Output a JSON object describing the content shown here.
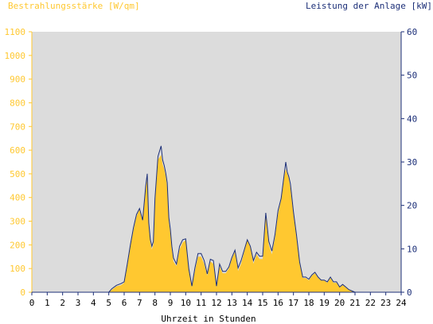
{
  "chart_data": {
    "type": "area",
    "title_left": "Bestrahlungsstärke [W/qm]",
    "title_right": "Leistung der Anlage [kW]",
    "xlabel": "Uhrzeit in Stunden",
    "xlim": [
      0,
      24
    ],
    "x_ticks": [
      "0",
      "1",
      "2",
      "3",
      "4",
      "5",
      "6",
      "7",
      "8",
      "9",
      "10",
      "11",
      "12",
      "13",
      "14",
      "15",
      "16",
      "17",
      "18",
      "19",
      "20",
      "21",
      "22",
      "23",
      "24"
    ],
    "ylim_left": [
      0,
      1100
    ],
    "y_ticks_left": [
      "0",
      "100",
      "200",
      "300",
      "400",
      "500",
      "600",
      "700",
      "800",
      "900",
      "1000",
      "1100"
    ],
    "ylim_right": [
      0,
      60
    ],
    "y_ticks_right": [
      "0",
      "10",
      "20",
      "30",
      "40",
      "50",
      "60"
    ],
    "grid": false,
    "colors": {
      "plot_background": "#dcdcdc",
      "irradiance_fill": "#ffc830",
      "power_line": "#1c2f78",
      "left_axis": "#ffc830",
      "right_axis": "#1c2f78",
      "text": "#000000"
    },
    "series": [
      {
        "name": "Bestrahlungsstärke [W/qm]",
        "axis": "left",
        "style": "area",
        "x": [
          0,
          5,
          5.2,
          5.5,
          5.8,
          6.0,
          6.2,
          6.4,
          6.6,
          6.8,
          7.0,
          7.2,
          7.4,
          7.5,
          7.6,
          7.7,
          7.8,
          7.9,
          8.0,
          8.2,
          8.4,
          8.5,
          8.6,
          8.7,
          8.8,
          8.9,
          9.0,
          9.1,
          9.2,
          9.4,
          9.6,
          9.8,
          10.0,
          10.2,
          10.4,
          10.6,
          10.8,
          11.0,
          11.2,
          11.4,
          11.6,
          11.8,
          12.0,
          12.2,
          12.4,
          12.6,
          12.8,
          13.0,
          13.2,
          13.4,
          13.6,
          13.8,
          14.0,
          14.2,
          14.4,
          14.6,
          14.8,
          15.0,
          15.2,
          15.4,
          15.6,
          15.8,
          16.0,
          16.2,
          16.4,
          16.5,
          16.6,
          16.7,
          16.8,
          17.0,
          17.2,
          17.4,
          17.6,
          17.8,
          18.0,
          18.2,
          18.4,
          18.6,
          18.8,
          19.0,
          19.2,
          19.4,
          19.6,
          19.8,
          20.0,
          20.2,
          20.4,
          20.6,
          21,
          24
        ],
        "y": [
          0,
          0,
          10,
          25,
          30,
          40,
          110,
          190,
          260,
          320,
          350,
          300,
          440,
          480,
          280,
          210,
          180,
          200,
          380,
          560,
          580,
          540,
          520,
          490,
          440,
          300,
          250,
          180,
          130,
          110,
          180,
          210,
          220,
          90,
          20,
          90,
          150,
          150,
          120,
          70,
          130,
          120,
          20,
          110,
          80,
          80,
          100,
          140,
          170,
          90,
          120,
          170,
          220,
          190,
          120,
          160,
          140,
          140,
          330,
          200,
          160,
          230,
          330,
          390,
          490,
          520,
          500,
          480,
          440,
          330,
          230,
          120,
          60,
          60,
          50,
          70,
          80,
          60,
          50,
          50,
          40,
          60,
          40,
          40,
          20,
          30,
          20,
          10,
          0,
          0
        ]
      },
      {
        "name": "Leistung der Anlage [kW]",
        "axis": "right",
        "style": "line",
        "x": [
          0,
          5,
          5.2,
          5.5,
          5.8,
          6.0,
          6.2,
          6.4,
          6.6,
          6.8,
          7.0,
          7.2,
          7.4,
          7.5,
          7.6,
          7.7,
          7.8,
          7.9,
          8.0,
          8.2,
          8.4,
          8.5,
          8.6,
          8.7,
          8.8,
          8.9,
          9.0,
          9.1,
          9.2,
          9.4,
          9.6,
          9.8,
          10.0,
          10.2,
          10.4,
          10.6,
          10.8,
          11.0,
          11.2,
          11.4,
          11.6,
          11.8,
          12.0,
          12.2,
          12.4,
          12.6,
          12.8,
          13.0,
          13.2,
          13.4,
          13.6,
          13.8,
          14.0,
          14.2,
          14.4,
          14.6,
          14.8,
          15.0,
          15.2,
          15.4,
          15.6,
          15.8,
          16.0,
          16.2,
          16.4,
          16.5,
          16.6,
          16.7,
          16.8,
          17.0,
          17.2,
          17.4,
          17.6,
          17.8,
          18.0,
          18.2,
          18.4,
          18.6,
          18.8,
          19.0,
          19.2,
          19.4,
          19.6,
          19.8,
          20.0,
          20.2,
          20.4,
          20.6,
          21,
          24
        ],
        "y": [
          0,
          0,
          0.8,
          1.6,
          2.0,
          2.4,
          6.5,
          10.8,
          14.8,
          17.9,
          19.3,
          16.6,
          24.5,
          27.3,
          16.0,
          12.1,
          10.6,
          11.7,
          21.6,
          31.3,
          33.7,
          30.5,
          29.2,
          27.5,
          25.2,
          17.2,
          14.5,
          10.6,
          7.9,
          6.5,
          10.6,
          12.1,
          12.3,
          5.4,
          1.4,
          5.6,
          8.9,
          8.9,
          7.3,
          4.2,
          7.6,
          7.3,
          1.4,
          6.5,
          4.8,
          4.8,
          5.8,
          8.0,
          9.7,
          5.6,
          7.3,
          9.7,
          12.1,
          10.6,
          7.3,
          9.2,
          8.3,
          8.3,
          18.3,
          11.7,
          9.5,
          13.3,
          18.8,
          21.6,
          27.2,
          30.0,
          27.7,
          26.6,
          25.0,
          18.5,
          13.2,
          7.0,
          3.5,
          3.5,
          3.0,
          4.0,
          4.6,
          3.5,
          2.8,
          2.8,
          2.4,
          3.5,
          2.4,
          2.4,
          1.2,
          1.8,
          1.2,
          0.6,
          0,
          0
        ]
      }
    ]
  }
}
